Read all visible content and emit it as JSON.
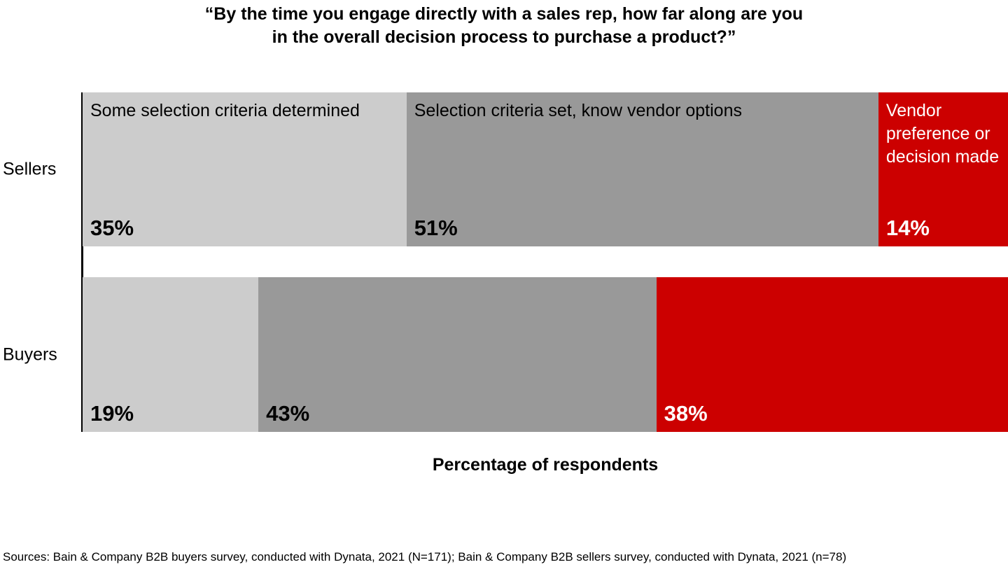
{
  "chart_data": {
    "type": "stacked-bar-horizontal",
    "title": "“By the time you engage directly with a sales rep, how far along are you\nin the overall decision process to purchase a product?”",
    "x_label": "Percentage of respondents",
    "source": "Sources: Bain & Company B2B buyers survey, conducted with Dynata, 2021 (N=171); Bain & Company B2B sellers survey, conducted with Dynata, 2021 (n=78)",
    "categories": [
      "Sellers",
      "Buyers"
    ],
    "xlim": [
      0,
      100
    ],
    "series": [
      {
        "name": "Some selection criteria determined",
        "color": "#cccccc",
        "values": [
          35,
          19
        ],
        "value_labels": [
          "35%",
          "19%"
        ]
      },
      {
        "name": "Selection criteria set, know vendor options",
        "color": "#999999",
        "values": [
          51,
          43
        ],
        "value_labels": [
          "51%",
          "43%"
        ]
      },
      {
        "name": "Vendor preference or decision made",
        "color": "#cc0000",
        "values": [
          14,
          38
        ],
        "value_labels": [
          "14%",
          "38%"
        ]
      }
    ]
  }
}
